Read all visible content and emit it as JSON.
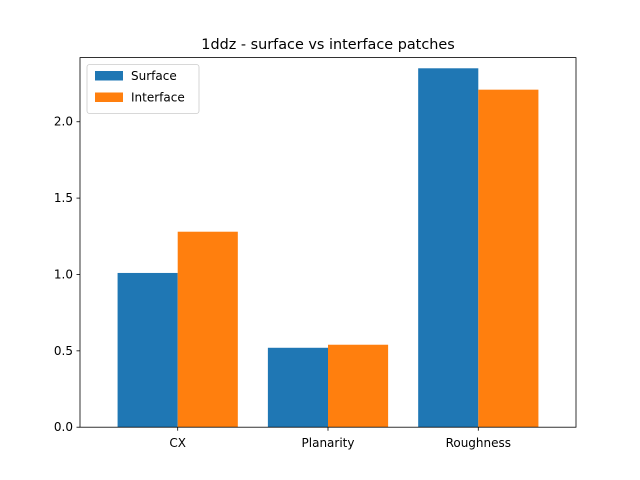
{
  "chart_data": {
    "type": "bar",
    "title": "1ddz - surface vs interface patches",
    "xlabel": "",
    "ylabel": "",
    "categories": [
      "CX",
      "Planarity",
      "Roughness"
    ],
    "series": [
      {
        "name": "Surface",
        "color": "#1f77b4",
        "values": [
          1.01,
          0.52,
          2.35
        ]
      },
      {
        "name": "Interface",
        "color": "#ff7f0e",
        "values": [
          1.28,
          0.54,
          2.21
        ]
      }
    ],
    "ylim": [
      0,
      2.42
    ],
    "yticks": [
      "0.0",
      "0.5",
      "1.0",
      "1.5",
      "2.0"
    ],
    "grid": false,
    "legend_position": "top-left"
  }
}
